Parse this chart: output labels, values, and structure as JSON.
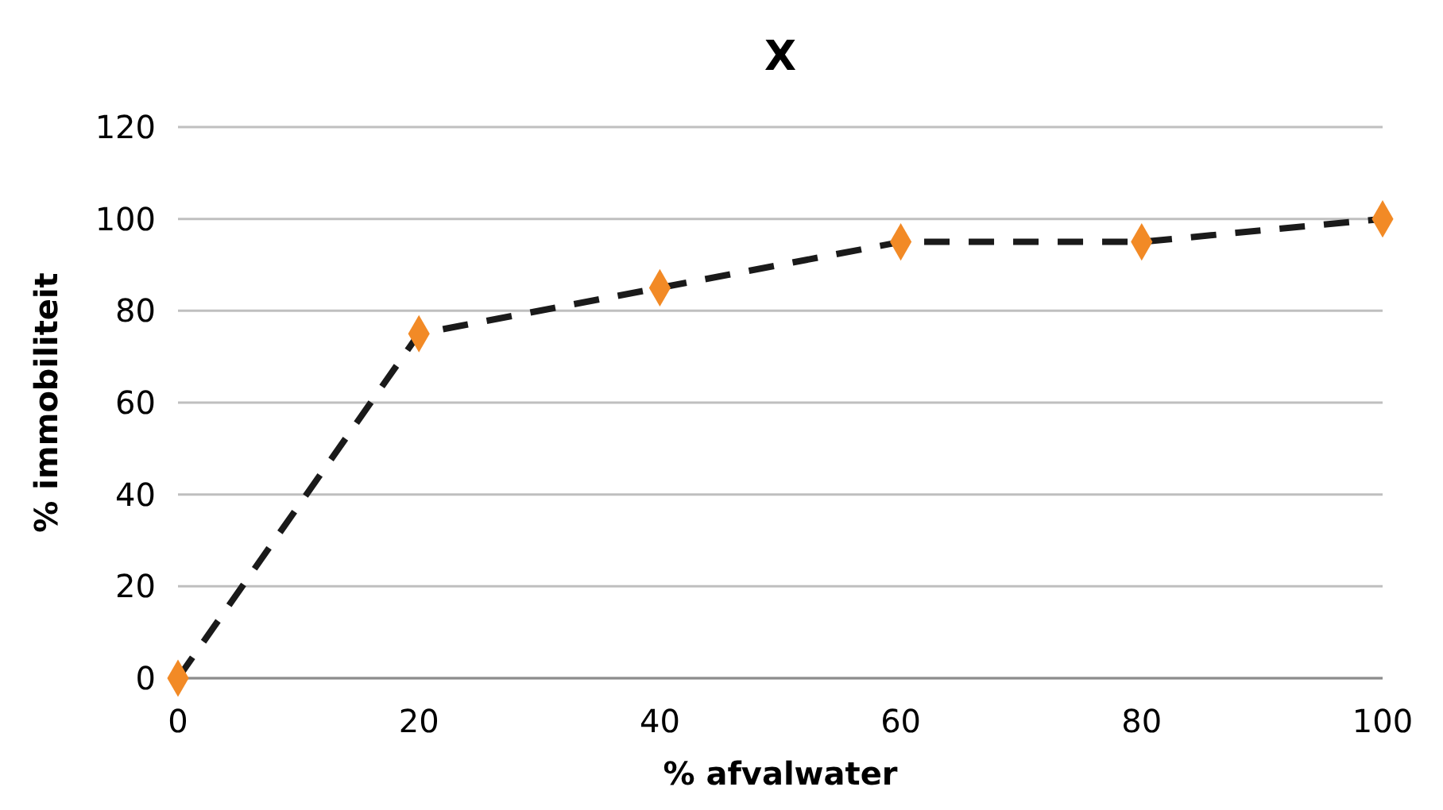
{
  "chart_data": {
    "type": "line",
    "title": "X",
    "xlabel": "% afvalwater",
    "ylabel": "% immobiliteit",
    "x": [
      0,
      20,
      40,
      60,
      80,
      100
    ],
    "series": [
      {
        "color": "#1a1a1a",
        "marker": "none",
        "line_style": "dashed",
        "values": [
          0,
          75,
          85,
          95,
          95,
          100
        ]
      },
      {
        "type": "scatter",
        "color": "#f28a26",
        "marker": "diamond",
        "values": [
          0,
          75,
          85,
          95,
          95,
          100
        ]
      }
    ],
    "xlim": [
      0,
      100
    ],
    "xticks": [
      0,
      20,
      40,
      60,
      80,
      100
    ],
    "ylim": [
      0,
      120
    ],
    "yticks": [
      0,
      20,
      40,
      60,
      80,
      100,
      120
    ],
    "grid": "y"
  }
}
